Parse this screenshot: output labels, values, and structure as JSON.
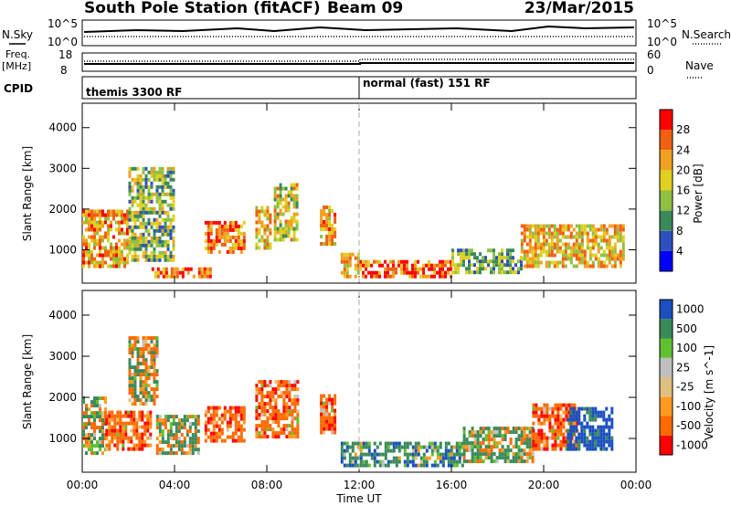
{
  "header": {
    "station": "South Pole Station (fitACF)",
    "beam": "Beam 09",
    "date": "23/Mar/2015"
  },
  "nsky_panel": {
    "label": "N.Sky",
    "tick_top": "10^5",
    "tick_bottom": "10^0",
    "right_label": "N.Search",
    "right_tick_top": "10^5",
    "right_tick_bottom": "10^0"
  },
  "freq_panel": {
    "label_line1": "Freq.",
    "label_line2": "[MHz]",
    "tick_top": "18",
    "tick_bottom": "8",
    "right_label": "Nave",
    "right_tick_top": "60",
    "right_tick_bottom": "0"
  },
  "cpid_panel": {
    "label": "CPID",
    "programs": [
      {
        "name": "themis 3300 RF",
        "start_hour": 0
      },
      {
        "name": "normal (fast) 151 RF",
        "start_hour": 12
      }
    ]
  },
  "colors": {
    "power_scale": [
      "#0000ff",
      "#2e4fbf",
      "#3a8a5a",
      "#8fc040",
      "#e0d020",
      "#f0a020",
      "#f06010",
      "#ff0000"
    ],
    "velocity_scale": [
      "#ff0000",
      "#ff6a00",
      "#ff9a20",
      "#e0c080",
      "#bfbfbf",
      "#60c030",
      "#3a8a5a",
      "#1a4fc0"
    ]
  },
  "chart_data": [
    {
      "type": "heatmap",
      "title": "Power",
      "xlabel": "",
      "ylabel": "Slant Range [km]",
      "colorbar_label": "Power [dB]",
      "colorbar_ticks": [
        "4",
        "8",
        "12",
        "16",
        "20",
        "24",
        "28"
      ],
      "x_range_hours": [
        0,
        24
      ],
      "x_ticks": [
        "00:00",
        "04:00",
        "08:00",
        "12:00",
        "16:00",
        "20:00",
        "00:00"
      ],
      "ylim": [
        180,
        4600
      ],
      "y_ticks": [
        1000,
        2000,
        3000,
        4000
      ],
      "echo_regions": [
        {
          "t0": 0.0,
          "t1": 2.0,
          "r0": 550,
          "r1": 1900,
          "value": 22
        },
        {
          "t0": 2.0,
          "t1": 4.0,
          "r0": 700,
          "r1": 3000,
          "value": 14
        },
        {
          "t0": 3.0,
          "t1": 5.5,
          "r0": 300,
          "r1": 500,
          "value": 26
        },
        {
          "t0": 5.3,
          "t1": 7.0,
          "r0": 900,
          "r1": 1700,
          "value": 24
        },
        {
          "t0": 7.5,
          "t1": 8.2,
          "r0": 1000,
          "r1": 2000,
          "value": 20
        },
        {
          "t0": 8.3,
          "t1": 9.3,
          "r0": 1200,
          "r1": 2600,
          "value": 18
        },
        {
          "t0": 10.3,
          "t1": 11.0,
          "r0": 1100,
          "r1": 2000,
          "value": 22
        },
        {
          "t0": 11.2,
          "t1": 12.0,
          "r0": 300,
          "r1": 900,
          "value": 20
        },
        {
          "t0": 12.0,
          "t1": 16.0,
          "r0": 300,
          "r1": 700,
          "value": 26
        },
        {
          "t0": 16.0,
          "t1": 19.0,
          "r0": 400,
          "r1": 1000,
          "value": 12
        },
        {
          "t0": 19.0,
          "t1": 23.5,
          "r0": 550,
          "r1": 1600,
          "value": 20
        }
      ]
    },
    {
      "type": "heatmap",
      "title": "Velocity",
      "xlabel": "Time UT",
      "ylabel": "Slant Range [km]",
      "colorbar_label": "Velocity [m s^-1]",
      "colorbar_ticks": [
        "1000",
        "500",
        "100",
        "25",
        "-25",
        "-100",
        "-500",
        "-1000"
      ],
      "x_range_hours": [
        0,
        24
      ],
      "x_ticks": [
        "00:00",
        "04:00",
        "08:00",
        "12:00",
        "16:00",
        "20:00",
        "00:00"
      ],
      "ylim": [
        180,
        4600
      ],
      "y_ticks": [
        1000,
        2000,
        3000,
        4000
      ],
      "echo_regions": [
        {
          "t0": 0.0,
          "t1": 1.0,
          "r0": 600,
          "r1": 2000,
          "value": 40
        },
        {
          "t0": 1.0,
          "t1": 3.0,
          "r0": 700,
          "r1": 1600,
          "value": -300
        },
        {
          "t0": 2.0,
          "t1": 3.2,
          "r0": 1800,
          "r1": 3400,
          "value": 0
        },
        {
          "t0": 3.2,
          "t1": 5.0,
          "r0": 600,
          "r1": 1500,
          "value": 60
        },
        {
          "t0": 5.3,
          "t1": 7.0,
          "r0": 900,
          "r1": 1700,
          "value": -350
        },
        {
          "t0": 7.5,
          "t1": 9.3,
          "r0": 1000,
          "r1": 2400,
          "value": -300
        },
        {
          "t0": 10.3,
          "t1": 11.0,
          "r0": 1100,
          "r1": 2000,
          "value": -300
        },
        {
          "t0": 11.2,
          "t1": 16.5,
          "r0": 300,
          "r1": 900,
          "value": 300
        },
        {
          "t0": 16.5,
          "t1": 19.5,
          "r0": 400,
          "r1": 1200,
          "value": 80
        },
        {
          "t0": 19.5,
          "t1": 21.5,
          "r0": 700,
          "r1": 1800,
          "value": -300
        },
        {
          "t0": 21.0,
          "t1": 23.0,
          "r0": 700,
          "r1": 1700,
          "value": 700
        }
      ]
    }
  ]
}
